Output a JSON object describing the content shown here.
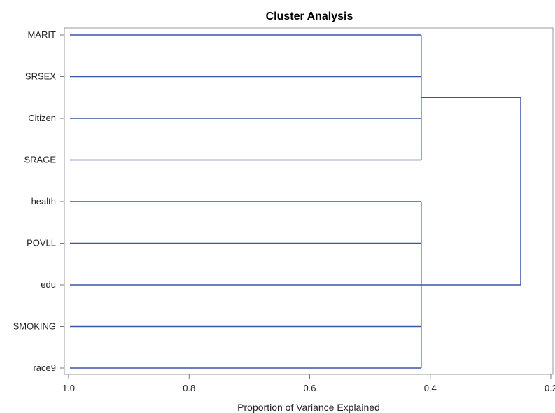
{
  "chart_data": {
    "type": "dendrogram",
    "title": "Cluster Analysis",
    "xlabel": "Proportion of Variance Explained",
    "ylabel": "",
    "xlim": [
      1.0,
      0.2
    ],
    "x_reversed": true,
    "x_ticks": [
      1.0,
      0.8,
      0.6,
      0.4,
      0.2
    ],
    "x_tick_labels": [
      "1.0",
      "0.8",
      "0.6",
      "0.4",
      "0.2"
    ],
    "leaves": [
      "MARIT",
      "SRSEX",
      "Citizen",
      "SRAGE",
      "health",
      "POVLL",
      "edu",
      "SMOKING",
      "race9"
    ],
    "clusters": [
      {
        "members": [
          "MARIT",
          "SRSEX",
          "Citizen",
          "SRAGE"
        ],
        "join_value": 0.415
      },
      {
        "members": [
          "health",
          "POVLL",
          "edu",
          "SMOKING",
          "race9"
        ],
        "join_value": 0.415
      }
    ],
    "root_join_value": 0.25,
    "line_color": "#3a57a6",
    "grid": false
  }
}
